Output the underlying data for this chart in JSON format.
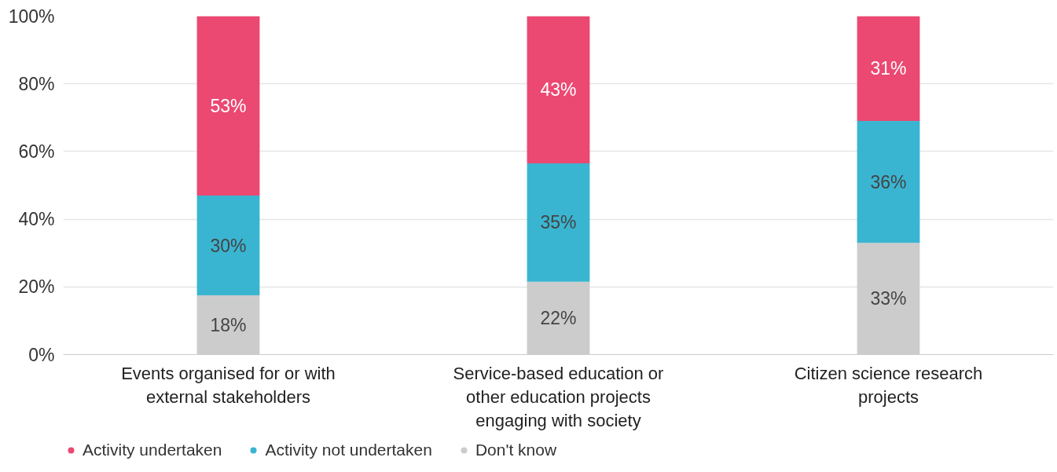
{
  "chart_data": {
    "type": "bar",
    "stacked": true,
    "categories": [
      "Events organised for or with external stakeholders",
      "Service-based education or other education projects engaging with society",
      "Citizen science research projects"
    ],
    "series": [
      {
        "name": "Don't know",
        "color": "#cccccc",
        "values": [
          17.5,
          21.5,
          33
        ],
        "value_labels": [
          "18%",
          "22%",
          "33%"
        ]
      },
      {
        "name": "Activity not undertaken",
        "color": "#3ab5d1",
        "values": [
          29.5,
          35,
          36
        ],
        "value_labels": [
          "30%",
          "35%",
          "36%"
        ]
      },
      {
        "name": "Activity undertaken",
        "color": "#eb4872",
        "values": [
          53,
          43.5,
          31
        ],
        "value_labels": [
          "53%",
          "43%",
          "31%"
        ]
      }
    ],
    "ylim": [
      0,
      100
    ],
    "yticks": [
      {
        "value": 0,
        "label": "0%"
      },
      {
        "value": 20,
        "label": "20%"
      },
      {
        "value": 40,
        "label": "40%"
      },
      {
        "value": 60,
        "label": "60%"
      },
      {
        "value": 80,
        "label": "80%"
      },
      {
        "value": 100,
        "label": "100%"
      }
    ],
    "grid": "y",
    "legend": "bottom left"
  }
}
